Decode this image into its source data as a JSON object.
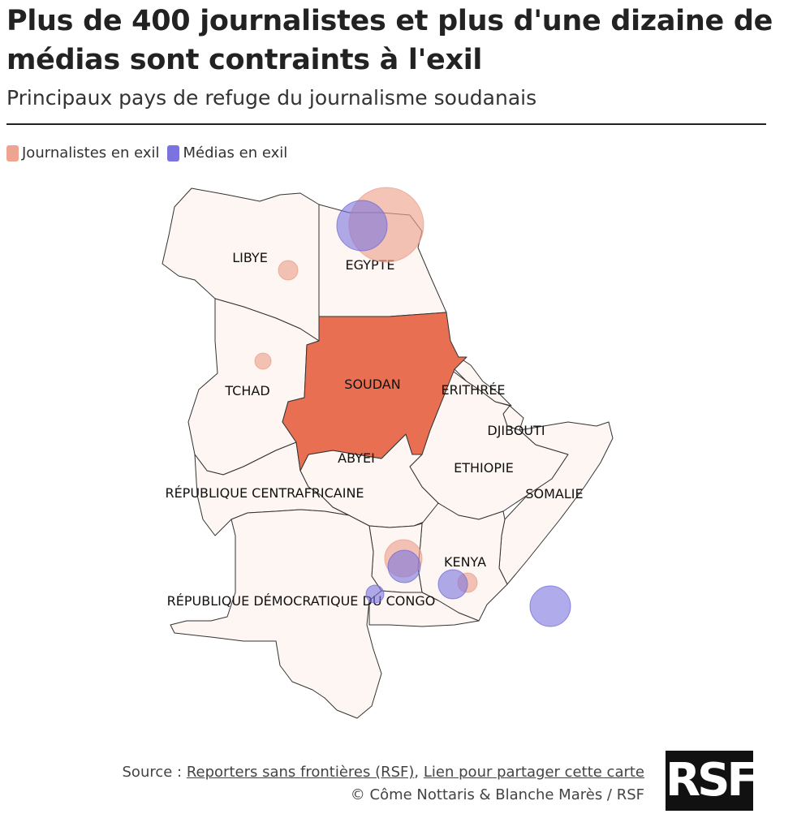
{
  "title": "Plus de 400 journalistes et plus d'une dizaine de médias sont contraints à l'exil",
  "subtitle": "Principaux pays de refuge du journalisme soudanais",
  "legend": {
    "journalists_label": "Journalistes en exil",
    "journalists_color": "#eea491",
    "media_label": "Médias en exil",
    "media_color": "#7b74e0"
  },
  "countries": {
    "libye": "LIBYE",
    "egypte": "EGYPTE",
    "tchad": "TCHAD",
    "soudan": "SOUDAN",
    "erithree": "ERITHRÉE",
    "djibouti": "DJIBOUTI",
    "abyei": "ABYEI",
    "ethiopie": "ETHIOPIE",
    "somalie": "SOMALIE",
    "rca": "RÉPUBLIQUE CENTRAFRICAINE",
    "kenya": "KENYA",
    "rdc": "RÉPUBLIQUE DÉMOCRATIQUE DU CONGO"
  },
  "colors": {
    "land": "#fdf6f2",
    "sudan": "#e86f52",
    "border": "#333333"
  },
  "footer": {
    "source_prefix": "Source :",
    "source_link": "Reporters sans frontières (RSF)",
    "separator": ",",
    "share_link": "Lien pour partager cette carte",
    "credit": "© Côme Nottaris & Blanche Marès / RSF"
  },
  "logo_text": "RSF"
}
